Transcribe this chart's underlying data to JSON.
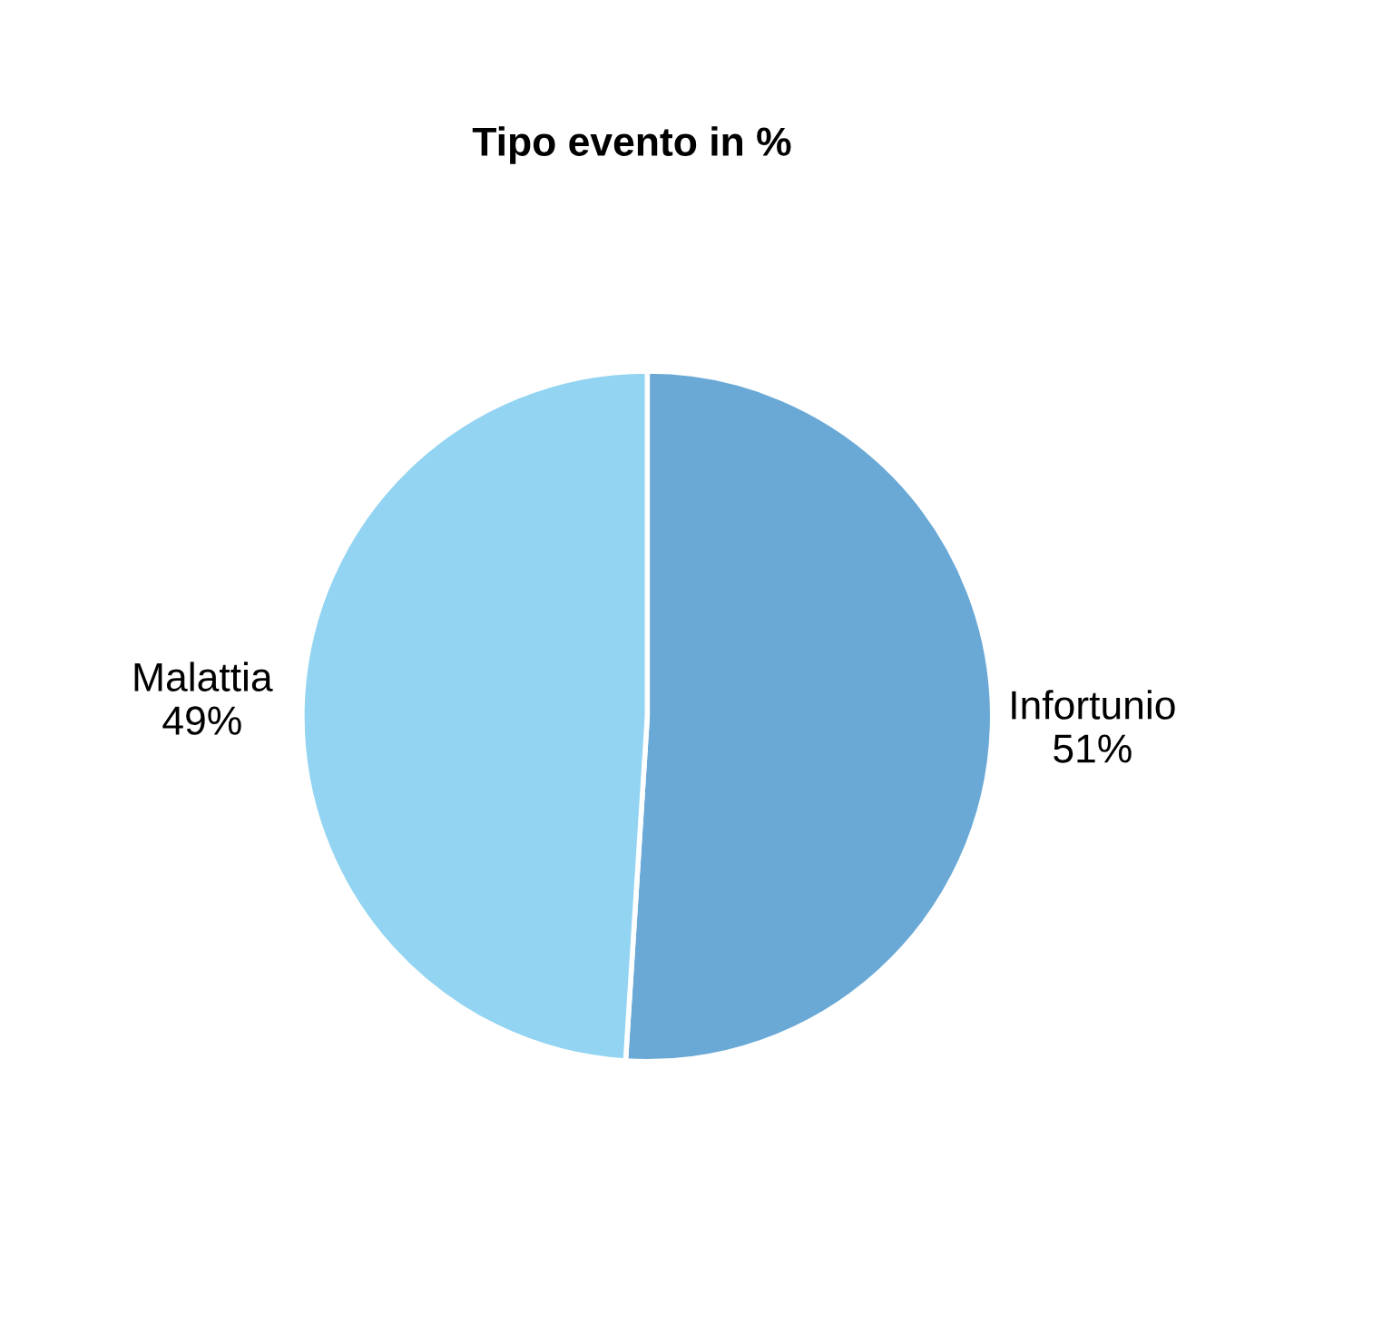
{
  "chart_data": {
    "type": "pie",
    "title": "Tipo evento in %",
    "categories": [
      "Infortunio",
      "Malattia"
    ],
    "values": [
      51,
      49
    ],
    "value_labels": [
      "51%",
      "49%"
    ],
    "colors": [
      "#6aa9d6",
      "#92d4f2"
    ]
  }
}
